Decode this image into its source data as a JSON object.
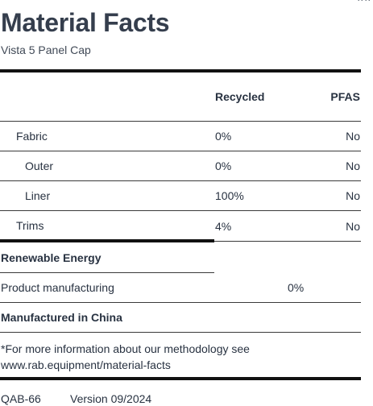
{
  "corner_glyph": "^ ^",
  "header": {
    "title": "Material Facts",
    "subtitle": "Vista 5 Panel Cap"
  },
  "table": {
    "columns": [
      "Recycled",
      "PFAS"
    ],
    "rows": [
      {
        "label": "Fabric",
        "recycled": "0%",
        "pfas": "No"
      },
      {
        "label": "Outer",
        "recycled": "0%",
        "pfas": "No"
      },
      {
        "label": "Liner",
        "recycled": "100%",
        "pfas": "No"
      },
      {
        "label": "Trims",
        "recycled": "4%",
        "pfas": "No"
      }
    ]
  },
  "energy": {
    "heading": "Renewable Energy",
    "label": "Product manufacturing",
    "value": "0%"
  },
  "origin": "Manufactured in China",
  "note": "*For more information about our methodology see www.rab.equipment/material-facts",
  "footer": {
    "code": "QAB-66",
    "version": "Version 09/2024"
  },
  "colors": {
    "text": "#283241",
    "rules": "#111111"
  }
}
